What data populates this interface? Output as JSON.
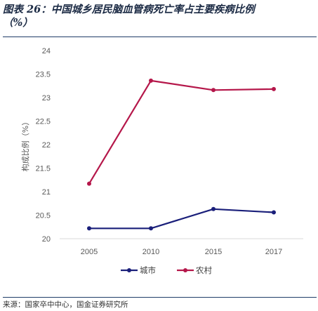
{
  "header": {
    "title_line1": "图表 26：中国城乡居民脑血管病死亡率占主要疾病比例",
    "title_line2": "（%）"
  },
  "footer": {
    "source": "来源：国家卒中中心，国金证券研究所"
  },
  "colors": {
    "urban": "#1a1f7a",
    "rural": "#b5174a",
    "rule": "#1f3c68"
  },
  "chart_data": {
    "type": "line",
    "categories": [
      "2005",
      "2010",
      "2015",
      "2017"
    ],
    "series": [
      {
        "name": "城市",
        "values": [
          20.22,
          20.22,
          20.63,
          20.56
        ]
      },
      {
        "name": "农村",
        "values": [
          21.17,
          23.36,
          23.16,
          23.18
        ]
      }
    ],
    "ylabel": "构成比例（%）",
    "ylim": [
      20,
      24
    ],
    "yticks": [
      "20",
      "20.5",
      "21",
      "21.5",
      "22",
      "22.5",
      "23",
      "23.5",
      "24"
    ],
    "grid": false,
    "legend_position": "bottom"
  }
}
